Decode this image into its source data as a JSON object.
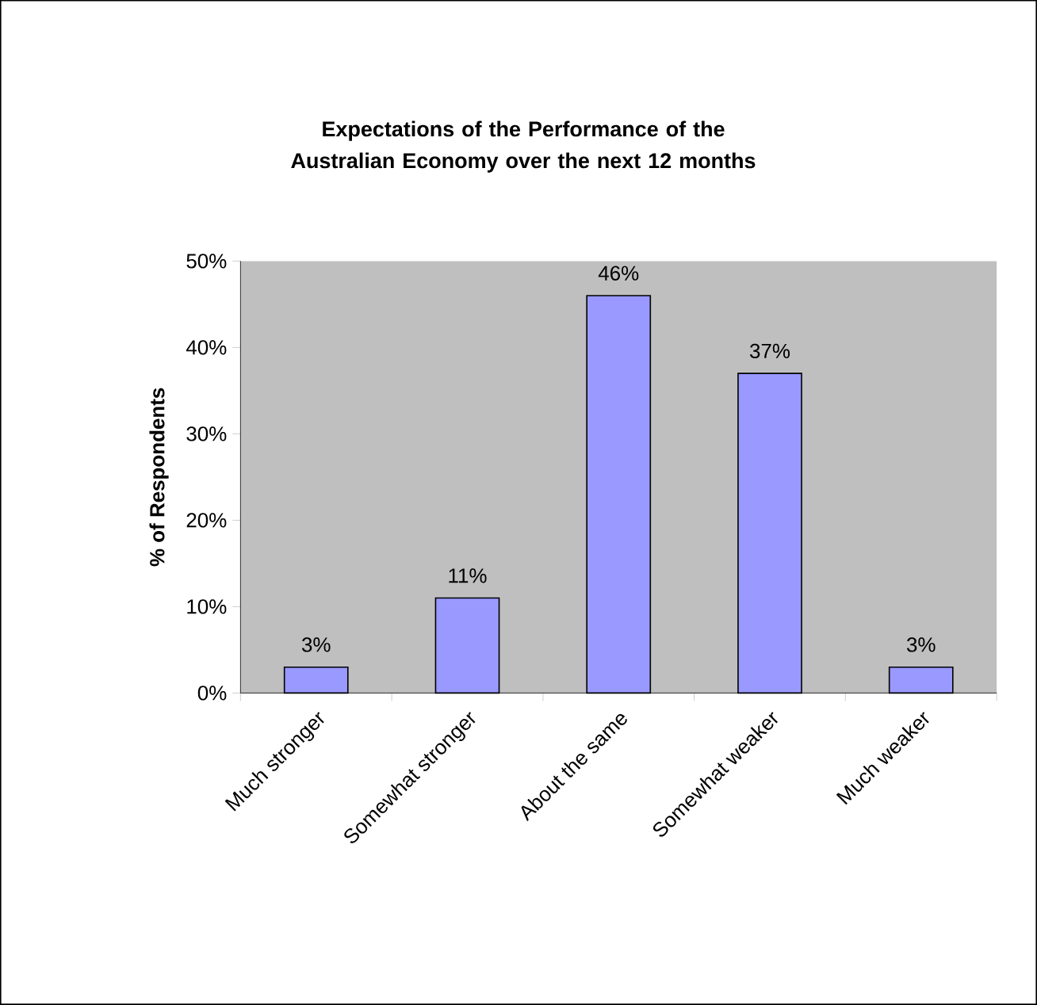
{
  "chart_data": {
    "type": "bar",
    "title": "Expectations of the Performance of the Australian Economy over the next 12 months",
    "ylabel": "% of Respondents",
    "categories": [
      "Much stronger",
      "Somewhat stronger",
      "About the same",
      "Somewhat weaker",
      "Much weaker"
    ],
    "values": [
      3,
      11,
      46,
      37,
      3
    ],
    "value_labels": [
      "3%",
      "11%",
      "46%",
      "37%",
      "3%"
    ],
    "color": "#9999ff",
    "ylim": [
      0,
      50
    ],
    "yticks": [
      {
        "value": 0,
        "label": "0%"
      },
      {
        "value": 10,
        "label": "10%"
      },
      {
        "value": 20,
        "label": "20%"
      },
      {
        "value": 30,
        "label": "30%"
      },
      {
        "value": 40,
        "label": "40%"
      },
      {
        "value": 50,
        "label": "50%"
      }
    ]
  }
}
